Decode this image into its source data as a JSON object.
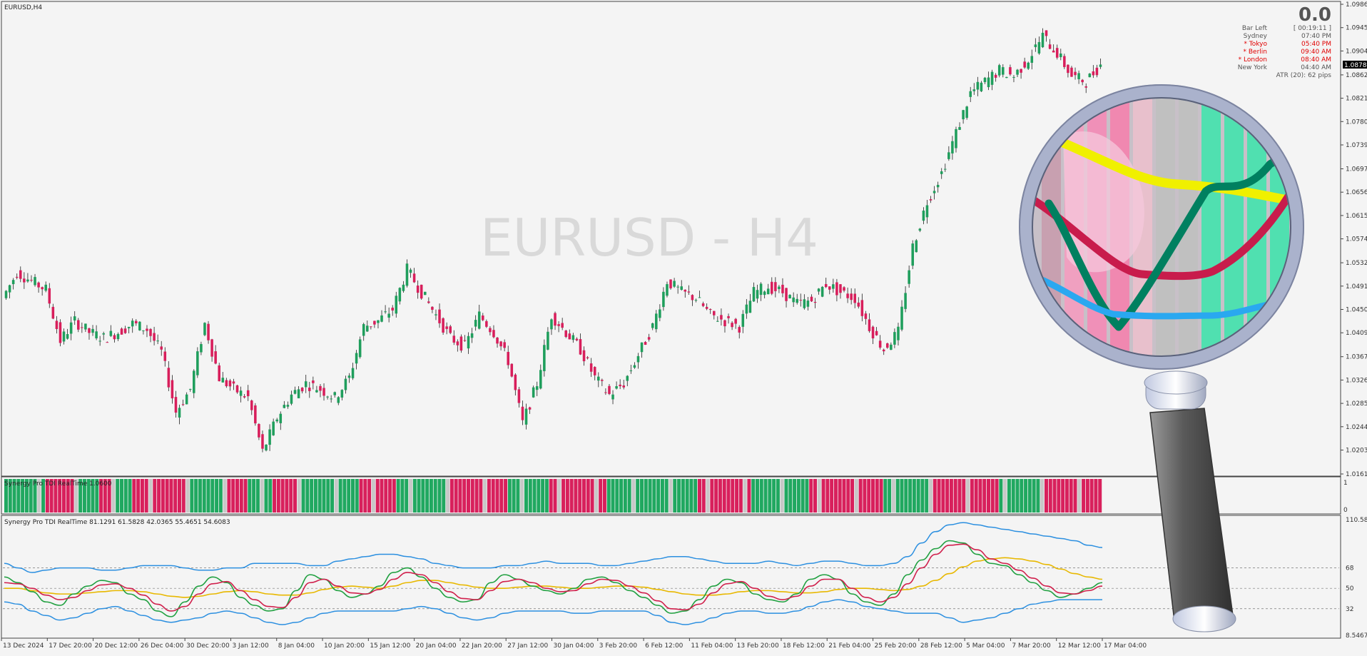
{
  "symbol_label": "EURUSD,H4",
  "watermark": "EURUSD - H4",
  "price": {
    "ticks": [
      "1.09860",
      "1.09450",
      "1.09040",
      "1.08620",
      "1.08210",
      "1.07800",
      "1.07390",
      "1.06970",
      "1.06560",
      "1.06150",
      "1.05740",
      "1.05320",
      "1.04910",
      "1.04500",
      "1.04090",
      "1.03670",
      "1.03260",
      "1.02850",
      "1.02440",
      "1.02030",
      "1.01610"
    ],
    "current_price": "1.08787",
    "candles_segments": [
      [
        1.047,
        1.0515
      ],
      [
        1.0515,
        1.05
      ],
      [
        1.05,
        1.0485
      ],
      [
        1.0485,
        1.0395
      ],
      [
        1.0395,
        1.043
      ],
      [
        1.043,
        1.041
      ],
      [
        1.041,
        1.04
      ],
      [
        1.04,
        1.041
      ],
      [
        1.041,
        1.0425
      ],
      [
        1.0425,
        1.0415
      ],
      [
        1.0415,
        1.0375
      ],
      [
        1.0375,
        1.027
      ],
      [
        1.027,
        1.031
      ],
      [
        1.031,
        1.0425
      ],
      [
        1.0425,
        1.033
      ],
      [
        1.033,
        1.031
      ],
      [
        1.031,
        1.0295
      ],
      [
        1.0295,
        1.02
      ],
      [
        1.02,
        1.026
      ],
      [
        1.026,
        1.03
      ],
      [
        1.03,
        1.032
      ],
      [
        1.032,
        1.031
      ],
      [
        1.031,
        1.0295
      ],
      [
        1.0295,
        1.033
      ],
      [
        1.033,
        1.042
      ],
      [
        1.042,
        1.043
      ],
      [
        1.043,
        1.045
      ],
      [
        1.045,
        1.052
      ],
      [
        1.052,
        1.048
      ],
      [
        1.048,
        1.044
      ],
      [
        1.044,
        1.04
      ],
      [
        1.04,
        1.0385
      ],
      [
        1.0385,
        1.044
      ],
      [
        1.044,
        1.041
      ],
      [
        1.041,
        1.036
      ],
      [
        1.036,
        1.025
      ],
      [
        1.025,
        1.032
      ],
      [
        1.032,
        1.044
      ],
      [
        1.044,
        1.041
      ],
      [
        1.041,
        1.038
      ],
      [
        1.038,
        1.033
      ],
      [
        1.033,
        1.03
      ],
      [
        1.03,
        1.032
      ],
      [
        1.032,
        1.037
      ],
      [
        1.037,
        1.042
      ],
      [
        1.042,
        1.05
      ],
      [
        1.05,
        1.048
      ],
      [
        1.048,
        1.047
      ],
      [
        1.047,
        1.044
      ],
      [
        1.044,
        1.043
      ],
      [
        1.043,
        1.042
      ],
      [
        1.042,
        1.048
      ],
      [
        1.048,
        1.049
      ],
      [
        1.049,
        1.048
      ],
      [
        1.048,
        1.046
      ],
      [
        1.046,
        1.0465
      ],
      [
        1.0465,
        1.0495
      ],
      [
        1.0495,
        1.048
      ],
      [
        1.048,
        1.047
      ],
      [
        1.047,
        1.042
      ],
      [
        1.042,
        1.038
      ],
      [
        1.038,
        1.041
      ],
      [
        1.041,
        1.056
      ],
      [
        1.056,
        1.064
      ],
      [
        1.064,
        1.069
      ],
      [
        1.069,
        1.076
      ],
      [
        1.076,
        1.083
      ],
      [
        1.083,
        1.085
      ],
      [
        1.085,
        1.087
      ],
      [
        1.087,
        1.086
      ],
      [
        1.086,
        1.089
      ],
      [
        1.089,
        1.093
      ],
      [
        1.093,
        1.09
      ],
      [
        1.09,
        1.086
      ],
      [
        1.086,
        1.085
      ],
      [
        1.085,
        1.088
      ]
    ]
  },
  "time_labels": [
    "13 Dec 2024",
    "17 Dec 20:00",
    "20 Dec 12:00",
    "26 Dec 04:00",
    "30 Dec 20:00",
    "3 Jan 12:00",
    "8 Jan 04:00",
    "10 Jan 20:00",
    "15 Jan 12:00",
    "20 Jan 04:00",
    "22 Jan 20:00",
    "27 Jan 12:00",
    "30 Jan 04:00",
    "3 Feb 20:00",
    "6 Feb 12:00",
    "11 Feb 04:00",
    "13 Feb 20:00",
    "18 Feb 12:00",
    "21 Feb 04:00",
    "25 Feb 20:00",
    "28 Feb 12:00",
    "5 Mar 04:00",
    "7 Mar 20:00",
    "12 Mar 12:00",
    "17 Mar 04:00"
  ],
  "info_panel": {
    "big_value": "0.0",
    "rows": [
      {
        "label": "Bar Left",
        "value": "[ 00:19:11 ]",
        "color": "#555555"
      },
      {
        "label": "Sydney",
        "value": "07:40 PM",
        "color": "#555555"
      },
      {
        "label": "* Tokyo",
        "value": "05:40 PM",
        "color": "#e00000"
      },
      {
        "label": "* Berlin",
        "value": "09:40 AM",
        "color": "#e00000"
      },
      {
        "label": "* London",
        "value": "08:40 AM",
        "color": "#e00000"
      },
      {
        "label": "New York",
        "value": "04:40 AM",
        "color": "#555555"
      }
    ],
    "atr": "ATR (20): 62 pips"
  },
  "histogram_panel": {
    "title": "Synergy Pro TDI RealTime 1.0600",
    "ticks": [
      "1",
      "0"
    ],
    "color_pattern": "ggggggggggrrrrrrrggggggrrrrggggrrrrrrrrrrrrrggggggggggrrrrrggggggrrrrrrgggggggggggggggrrrrrrrrrggggggggggggrrrrrrrrrrrrrrrggggggggggrrrrrrrrrrrrrrggggggggggggggggggggggrrrrrrrrrrrrrggggggggggggggrrrrrrrrrrrrrrrrrrggggggggggggrrrrrrrrrrrrrrrrgggggggggggrrrrrrrrrrrrrr",
    "colors": {
      "g": "#20a860",
      "r": "#d8205c",
      "n": "#c8c8c8"
    }
  },
  "tdi_panel": {
    "title": "Synergy Pro TDI RealTime 81.1291 61.5828 42.0365 55.4651 54.6083",
    "ticks": [
      "110.5869",
      "68",
      "50",
      "32",
      "8.5467"
    ],
    "levels": [
      68,
      50,
      32
    ],
    "series_colors": {
      "upper_band": "#2b8fe0",
      "lower_band": "#2b8fe0",
      "signal": "#e8b800",
      "rsi_fast": "#20a040",
      "rsi_slow": "#d0204c"
    },
    "rsi_fast": [
      60,
      55,
      47,
      38,
      35,
      45,
      52,
      57,
      55,
      45,
      40,
      30,
      25,
      38,
      52,
      60,
      55,
      42,
      35,
      30,
      32,
      48,
      62,
      58,
      48,
      42,
      45,
      52,
      64,
      68,
      60,
      50,
      42,
      38,
      40,
      55,
      62,
      58,
      52,
      48,
      45,
      50,
      58,
      60,
      55,
      48,
      42,
      35,
      28,
      30,
      40,
      52,
      58,
      55,
      45,
      40,
      38,
      45,
      58,
      62,
      58,
      45,
      38,
      35,
      45,
      62,
      75,
      85,
      92,
      90,
      80,
      72,
      70,
      62,
      55,
      48,
      42,
      45,
      50,
      55
    ],
    "rsi_slow": [
      55,
      54,
      50,
      44,
      40,
      42,
      48,
      53,
      54,
      50,
      44,
      36,
      30,
      34,
      45,
      54,
      56,
      48,
      40,
      34,
      33,
      42,
      55,
      58,
      52,
      46,
      45,
      49,
      58,
      64,
      62,
      55,
      47,
      41,
      40,
      48,
      56,
      58,
      55,
      50,
      47,
      48,
      54,
      58,
      57,
      52,
      46,
      39,
      32,
      31,
      36,
      46,
      54,
      56,
      50,
      43,
      40,
      43,
      52,
      58,
      58,
      50,
      42,
      38,
      42,
      54,
      68,
      80,
      88,
      89,
      84,
      76,
      72,
      66,
      59,
      52,
      46,
      45,
      48,
      52
    ],
    "signal": [
      50,
      50,
      48,
      46,
      45,
      45,
      46,
      47,
      48,
      48,
      47,
      45,
      43,
      42,
      43,
      45,
      47,
      48,
      47,
      45,
      44,
      44,
      46,
      49,
      51,
      52,
      51,
      50,
      52,
      55,
      57,
      57,
      55,
      53,
      51,
      50,
      50,
      51,
      52,
      52,
      51,
      50,
      50,
      51,
      52,
      52,
      51,
      49,
      47,
      45,
      44,
      44,
      45,
      47,
      48,
      48,
      47,
      46,
      46,
      47,
      49,
      50,
      50,
      49,
      48,
      49,
      52,
      57,
      63,
      69,
      74,
      76,
      77,
      76,
      74,
      71,
      67,
      63,
      60,
      58
    ],
    "upper_band": [
      72,
      68,
      64,
      66,
      68,
      68,
      68,
      66,
      66,
      68,
      70,
      70,
      70,
      68,
      66,
      66,
      68,
      68,
      72,
      72,
      72,
      72,
      70,
      70,
      74,
      76,
      78,
      80,
      80,
      78,
      76,
      72,
      70,
      68,
      68,
      68,
      70,
      70,
      72,
      74,
      72,
      72,
      72,
      70,
      70,
      72,
      74,
      76,
      78,
      78,
      76,
      74,
      72,
      72,
      72,
      74,
      72,
      70,
      72,
      74,
      74,
      72,
      70,
      70,
      72,
      78,
      90,
      100,
      106,
      108,
      106,
      104,
      102,
      100,
      98,
      96,
      94,
      92,
      88,
      86
    ],
    "lower_band": [
      38,
      36,
      30,
      26,
      22,
      24,
      28,
      32,
      34,
      30,
      26,
      22,
      20,
      22,
      24,
      28,
      30,
      28,
      24,
      20,
      18,
      20,
      24,
      28,
      30,
      30,
      30,
      30,
      30,
      32,
      34,
      32,
      28,
      24,
      22,
      24,
      28,
      30,
      30,
      30,
      30,
      28,
      28,
      30,
      30,
      30,
      30,
      26,
      20,
      18,
      20,
      24,
      28,
      30,
      30,
      28,
      28,
      30,
      34,
      38,
      40,
      38,
      34,
      32,
      30,
      28,
      28,
      28,
      24,
      20,
      22,
      24,
      28,
      32,
      36,
      38,
      40,
      40,
      40,
      40
    ]
  },
  "magnifier": {
    "inner_columns": [
      "#c8a0b0",
      "#f0a0c0",
      "#f090b8",
      "#f088b0",
      "#e8c0cc",
      "#c0c0c0",
      "#c0c0c0",
      "#50e0b0",
      "#50e0b0",
      "#50e0b0",
      "#50e0b0"
    ],
    "colors": {
      "ring": "#b8c0d8",
      "handle": "#707070",
      "yellow": "#f0f000",
      "green": "#008060",
      "crimson": "#c81c4c",
      "blue": "#2aa8f0"
    }
  }
}
